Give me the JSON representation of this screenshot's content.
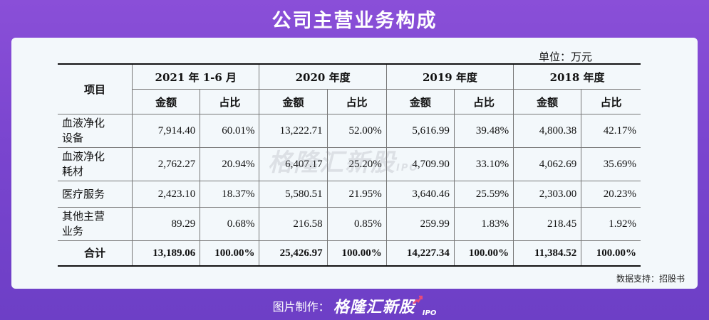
{
  "title": "公司主营业务构成",
  "unit_note": "单位：万元",
  "table": {
    "item_header": "项目",
    "periods": [
      "2021 年 1-6 月",
      "2020 年度",
      "2019 年度",
      "2018 年度"
    ],
    "amount_header": "金额",
    "ratio_header": "占比",
    "rows": [
      {
        "item_line1": "血液净化",
        "item_line2": "设备",
        "values": [
          "7,914.40",
          "60.01%",
          "13,222.71",
          "52.00%",
          "5,616.99",
          "39.48%",
          "4,800.38",
          "42.17%"
        ]
      },
      {
        "item_line1": "血液净化",
        "item_line2": "耗材",
        "values": [
          "2,762.27",
          "20.94%",
          "6,407.17",
          "25.20%",
          "4,709.90",
          "33.10%",
          "4,062.69",
          "35.69%"
        ]
      },
      {
        "item_line1": "医疗服务",
        "item_line2": "",
        "values": [
          "2,423.10",
          "18.37%",
          "5,580.51",
          "21.95%",
          "3,640.46",
          "25.59%",
          "2,303.00",
          "20.23%"
        ]
      },
      {
        "item_line1": "其他主营",
        "item_line2": "业务",
        "values": [
          "89.29",
          "0.68%",
          "216.58",
          "0.85%",
          "259.99",
          "1.83%",
          "218.45",
          "1.92%"
        ]
      }
    ],
    "total": {
      "label": "合计",
      "values": [
        "13,189.06",
        "100.00%",
        "25,426.97",
        "100.00%",
        "14,227.34",
        "100.00%",
        "11,384.52",
        "100.00%"
      ]
    }
  },
  "source_note": "数据支持：招股书",
  "watermark": {
    "brand": "格隆汇新股",
    "suffix": "IPO"
  },
  "footer": {
    "label": "图片制作：",
    "brand": "格隆汇新股",
    "suffix": "IPO"
  }
}
